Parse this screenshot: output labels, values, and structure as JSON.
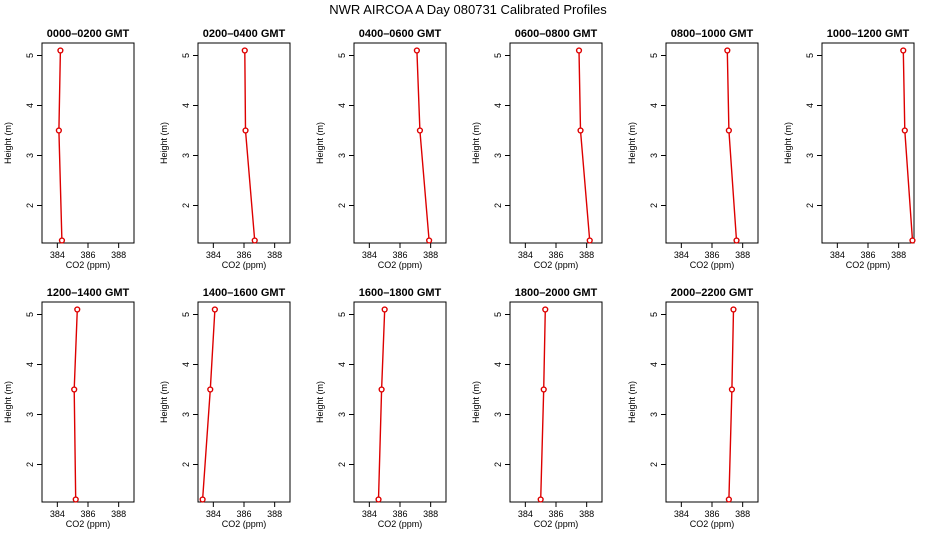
{
  "figure": {
    "title": "NWR AIRCOA A  Day 080731  Calibrated Profiles",
    "series_color": "#dd0000"
  },
  "chart_data": [
    {
      "type": "line",
      "title": "0000–0200 GMT",
      "xlabel": "CO2 (ppm)",
      "ylabel": "Height (m)",
      "xlim": [
        383,
        389
      ],
      "ylim": [
        1.25,
        5.25
      ],
      "xticks": [
        "384",
        "386",
        "388"
      ],
      "yticks": [
        "2",
        "3",
        "4",
        "5"
      ],
      "points": [
        {
          "x": 384.3,
          "y": 1.3
        },
        {
          "x": 384.1,
          "y": 3.5
        },
        {
          "x": 384.2,
          "y": 5.1
        }
      ]
    },
    {
      "type": "line",
      "title": "0200–0400 GMT",
      "xlabel": "CO2 (ppm)",
      "ylabel": "Height (m)",
      "xlim": [
        383,
        389
      ],
      "ylim": [
        1.25,
        5.25
      ],
      "xticks": [
        "384",
        "386",
        "388"
      ],
      "yticks": [
        "2",
        "3",
        "4",
        "5"
      ],
      "points": [
        {
          "x": 386.7,
          "y": 1.3
        },
        {
          "x": 386.1,
          "y": 3.5
        },
        {
          "x": 386.05,
          "y": 5.1
        }
      ]
    },
    {
      "type": "line",
      "title": "0400–0600 GMT",
      "xlabel": "CO2 (ppm)",
      "ylabel": "Height (m)",
      "xlim": [
        383,
        389
      ],
      "ylim": [
        1.25,
        5.25
      ],
      "xticks": [
        "384",
        "386",
        "388"
      ],
      "yticks": [
        "2",
        "3",
        "4",
        "5"
      ],
      "points": [
        {
          "x": 387.9,
          "y": 1.3
        },
        {
          "x": 387.3,
          "y": 3.5
        },
        {
          "x": 387.1,
          "y": 5.1
        }
      ]
    },
    {
      "type": "line",
      "title": "0600–0800 GMT",
      "xlabel": "CO2 (ppm)",
      "ylabel": "Height (m)",
      "xlim": [
        383,
        389
      ],
      "ylim": [
        1.25,
        5.25
      ],
      "xticks": [
        "384",
        "386",
        "388"
      ],
      "yticks": [
        "2",
        "3",
        "4",
        "5"
      ],
      "points": [
        {
          "x": 388.2,
          "y": 1.3
        },
        {
          "x": 387.6,
          "y": 3.5
        },
        {
          "x": 387.5,
          "y": 5.1
        }
      ]
    },
    {
      "type": "line",
      "title": "0800–1000 GMT",
      "xlabel": "CO2 (ppm)",
      "ylabel": "Height (m)",
      "xlim": [
        383,
        389
      ],
      "ylim": [
        1.25,
        5.25
      ],
      "xticks": [
        "384",
        "386",
        "388"
      ],
      "yticks": [
        "2",
        "3",
        "4",
        "5"
      ],
      "points": [
        {
          "x": 387.6,
          "y": 1.3
        },
        {
          "x": 387.1,
          "y": 3.5
        },
        {
          "x": 387.0,
          "y": 5.1
        }
      ]
    },
    {
      "type": "line",
      "title": "1000–1200 GMT",
      "xlabel": "CO2 (ppm)",
      "ylabel": "Height (m)",
      "xlim": [
        383,
        389
      ],
      "ylim": [
        1.25,
        5.25
      ],
      "xticks": [
        "384",
        "386",
        "388"
      ],
      "yticks": [
        "2",
        "3",
        "4",
        "5"
      ],
      "points": [
        {
          "x": 388.9,
          "y": 1.3
        },
        {
          "x": 388.4,
          "y": 3.5
        },
        {
          "x": 388.3,
          "y": 5.1
        }
      ]
    },
    {
      "type": "line",
      "title": "1200–1400 GMT",
      "xlabel": "CO2 (ppm)",
      "ylabel": "Height (m)",
      "xlim": [
        383,
        389
      ],
      "ylim": [
        1.25,
        5.25
      ],
      "xticks": [
        "384",
        "386",
        "388"
      ],
      "yticks": [
        "2",
        "3",
        "4",
        "5"
      ],
      "points": [
        {
          "x": 385.2,
          "y": 1.3
        },
        {
          "x": 385.1,
          "y": 3.5
        },
        {
          "x": 385.3,
          "y": 5.1
        }
      ]
    },
    {
      "type": "line",
      "title": "1400–1600 GMT",
      "xlabel": "CO2 (ppm)",
      "ylabel": "Height (m)",
      "xlim": [
        383,
        389
      ],
      "ylim": [
        1.25,
        5.25
      ],
      "xticks": [
        "384",
        "386",
        "388"
      ],
      "yticks": [
        "2",
        "3",
        "4",
        "5"
      ],
      "points": [
        {
          "x": 383.3,
          "y": 1.3
        },
        {
          "x": 383.8,
          "y": 3.5
        },
        {
          "x": 384.1,
          "y": 5.1
        }
      ]
    },
    {
      "type": "line",
      "title": "1600–1800 GMT",
      "xlabel": "CO2 (ppm)",
      "ylabel": "Height (m)",
      "xlim": [
        383,
        389
      ],
      "ylim": [
        1.25,
        5.25
      ],
      "xticks": [
        "384",
        "386",
        "388"
      ],
      "yticks": [
        "2",
        "3",
        "4",
        "5"
      ],
      "points": [
        {
          "x": 384.6,
          "y": 1.3
        },
        {
          "x": 384.8,
          "y": 3.5
        },
        {
          "x": 385.0,
          "y": 5.1
        }
      ]
    },
    {
      "type": "line",
      "title": "1800–2000 GMT",
      "xlabel": "CO2 (ppm)",
      "ylabel": "Height (m)",
      "xlim": [
        383,
        389
      ],
      "ylim": [
        1.25,
        5.25
      ],
      "xticks": [
        "384",
        "386",
        "388"
      ],
      "yticks": [
        "2",
        "3",
        "4",
        "5"
      ],
      "points": [
        {
          "x": 385.0,
          "y": 1.3
        },
        {
          "x": 385.2,
          "y": 3.5
        },
        {
          "x": 385.3,
          "y": 5.1
        }
      ]
    },
    {
      "type": "line",
      "title": "2000–2200 GMT",
      "xlabel": "CO2 (ppm)",
      "ylabel": "Height (m)",
      "xlim": [
        383,
        389
      ],
      "ylim": [
        1.25,
        5.25
      ],
      "xticks": [
        "384",
        "386",
        "388"
      ],
      "yticks": [
        "2",
        "3",
        "4",
        "5"
      ],
      "points": [
        {
          "x": 387.1,
          "y": 1.3
        },
        {
          "x": 387.3,
          "y": 3.5
        },
        {
          "x": 387.4,
          "y": 5.1
        }
      ]
    }
  ]
}
